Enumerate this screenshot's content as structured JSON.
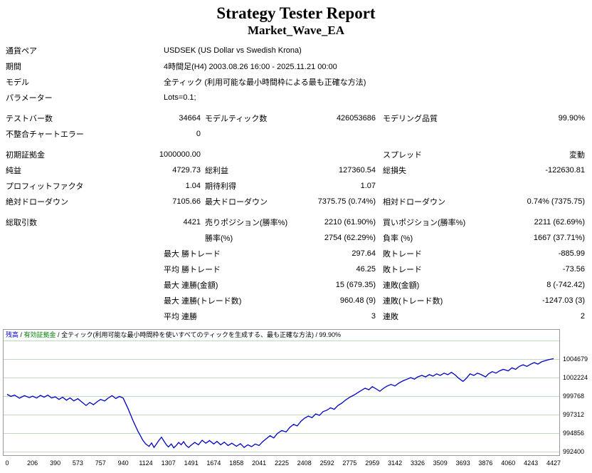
{
  "title": "Strategy Tester Report",
  "subtitle": "Market_Wave_EA",
  "report": {
    "rows": [
      {
        "k": "symbol",
        "cells": [
          {
            "c": 1,
            "t": "通貨ペア"
          },
          {
            "c": 2,
            "s": 5,
            "a": "l",
            "i": 1,
            "t": "USDSEK (US Dollar vs Swedish Krona)"
          }
        ]
      },
      {
        "k": "period",
        "cells": [
          {
            "c": 1,
            "t": "期間"
          },
          {
            "c": 2,
            "s": 5,
            "a": "l",
            "i": 1,
            "t": "4時間足(H4) 2003.08.26 16:00 - 2025.11.21 00:00"
          }
        ]
      },
      {
        "k": "model",
        "cells": [
          {
            "c": 1,
            "t": "モデル"
          },
          {
            "c": 2,
            "s": 5,
            "a": "l",
            "i": 1,
            "t": "全ティック (利用可能な最小時間枠による最も正確な方法)"
          }
        ]
      },
      {
        "k": "parameters",
        "cells": [
          {
            "c": 1,
            "t": "パラメーター"
          },
          {
            "c": 2,
            "s": 5,
            "a": "l",
            "i": 1,
            "t": "Lots=0.1;"
          }
        ]
      },
      {
        "k": "bars",
        "gap": true,
        "cells": [
          {
            "c": 1,
            "t": "テストバー数"
          },
          {
            "c": 2,
            "t": "34664"
          },
          {
            "c": 3,
            "t": "モデルティック数"
          },
          {
            "c": 4,
            "t": "426053686"
          },
          {
            "c": 5,
            "t": "モデリング品質"
          },
          {
            "c": 6,
            "t": "99.90%"
          }
        ]
      },
      {
        "k": "chart-errors",
        "cells": [
          {
            "c": 1,
            "t": "不整合チャートエラー"
          },
          {
            "c": 2,
            "t": "0"
          }
        ]
      },
      {
        "k": "initial-deposit",
        "gap": true,
        "cells": [
          {
            "c": 1,
            "t": "初期証拠金"
          },
          {
            "c": 2,
            "t": "1000000.00"
          },
          {
            "c": 5,
            "t": "スプレッド"
          },
          {
            "c": 6,
            "t": "変動"
          }
        ]
      },
      {
        "k": "net-profit",
        "cells": [
          {
            "c": 1,
            "t": "純益"
          },
          {
            "c": 2,
            "t": "4729.73"
          },
          {
            "c": 3,
            "t": "総利益"
          },
          {
            "c": 4,
            "t": "127360.54"
          },
          {
            "c": 5,
            "t": "総損失"
          },
          {
            "c": 6,
            "t": "-122630.81"
          }
        ]
      },
      {
        "k": "profit-factor",
        "cells": [
          {
            "c": 1,
            "t": "プロフィットファクタ"
          },
          {
            "c": 2,
            "t": "1.04"
          },
          {
            "c": 3,
            "t": "期待利得"
          },
          {
            "c": 4,
            "t": "1.07"
          }
        ]
      },
      {
        "k": "drawdown",
        "cells": [
          {
            "c": 1,
            "t": "絶対ドローダウン"
          },
          {
            "c": 2,
            "t": "7105.66"
          },
          {
            "c": 3,
            "t": "最大ドローダウン"
          },
          {
            "c": 4,
            "t": "7375.75 (0.74%)"
          },
          {
            "c": 5,
            "t": "相対ドローダウン"
          },
          {
            "c": 6,
            "t": "0.74% (7375.75)"
          }
        ]
      },
      {
        "k": "total-trades",
        "gap": true,
        "cells": [
          {
            "c": 1,
            "t": "総取引数"
          },
          {
            "c": 2,
            "t": "4421"
          },
          {
            "c": 3,
            "t": "売りポジション(勝率%)"
          },
          {
            "c": 4,
            "t": "2210 (61.90%)"
          },
          {
            "c": 5,
            "t": "買いポジション(勝率%)"
          },
          {
            "c": 6,
            "t": "2211 (62.69%)"
          }
        ]
      },
      {
        "k": "win-rate",
        "cells": [
          {
            "c": 3,
            "t": "勝率(%)"
          },
          {
            "c": 4,
            "t": "2754 (62.29%)"
          },
          {
            "c": 5,
            "t": "負率 (%)"
          },
          {
            "c": 6,
            "t": "1667 (37.71%)"
          }
        ]
      },
      {
        "k": "largest-trade",
        "cells": [
          {
            "c": 2,
            "s": 2,
            "a": "l",
            "i": 1,
            "t": "最大 勝トレード"
          },
          {
            "c": 4,
            "t": "297.64"
          },
          {
            "c": 5,
            "t": "敗トレード"
          },
          {
            "c": 6,
            "t": "-885.99"
          }
        ]
      },
      {
        "k": "average-trade",
        "cells": [
          {
            "c": 2,
            "s": 2,
            "a": "l",
            "i": 1,
            "t": "平均 勝トレード"
          },
          {
            "c": 4,
            "t": "46.25"
          },
          {
            "c": 5,
            "t": "敗トレード"
          },
          {
            "c": 6,
            "t": "-73.56"
          }
        ]
      },
      {
        "k": "max-consecutive-amount",
        "cells": [
          {
            "c": 2,
            "s": 2,
            "a": "l",
            "i": 1,
            "t": "最大 連勝(金額)"
          },
          {
            "c": 4,
            "t": "15 (679.35)"
          },
          {
            "c": 5,
            "t": "連敗(金額)"
          },
          {
            "c": 6,
            "t": "8 (-742.42)"
          }
        ]
      },
      {
        "k": "max-consecutive-count",
        "cells": [
          {
            "c": 2,
            "s": 2,
            "a": "l",
            "i": 1,
            "t": "最大 連勝(トレード数)"
          },
          {
            "c": 4,
            "t": "960.48 (9)"
          },
          {
            "c": 5,
            "t": "連敗(トレード数)"
          },
          {
            "c": 6,
            "t": "-1247.03 (3)"
          }
        ]
      },
      {
        "k": "avg-consecutive",
        "cells": [
          {
            "c": 2,
            "s": 2,
            "a": "l",
            "i": 1,
            "t": "平均 連勝"
          },
          {
            "c": 4,
            "t": "3"
          },
          {
            "c": 5,
            "t": "連敗"
          },
          {
            "c": 6,
            "t": "2"
          }
        ]
      }
    ]
  },
  "chart": {
    "legend": {
      "balance": "残高",
      "equity": "有効証拠金",
      "model": "全ティック(利用可能な最小時間枠を使いすべてのティックを生成する、最も正確な方法)",
      "quality": "99.90%",
      "sep": " / "
    },
    "colors": {
      "balance_line": "#0000c8",
      "balance_label": "#0000d0",
      "equity_label": "#008000",
      "grid": "#c0dcc0",
      "border": "#999999"
    },
    "chart_data": {
      "type": "line",
      "legend_position": "top-left",
      "grid": "horizontal",
      "x_range": [
        0,
        4427
      ],
      "y_range": [
        992400,
        1004679
      ],
      "y_ticks": [
        1004679,
        1002224,
        999768,
        997312,
        994856,
        992400
      ],
      "x_ticks": [
        0,
        206,
        390,
        573,
        757,
        940,
        1124,
        1307,
        1491,
        1674,
        1858,
        2041,
        2225,
        2408,
        2592,
        2775,
        2959,
        3142,
        3326,
        3509,
        3693,
        3876,
        4060,
        4243,
        4427
      ],
      "series": [
        {
          "name": "残高",
          "points": [
            [
              0,
              1000000
            ],
            [
              30,
              999720
            ],
            [
              60,
              999900
            ],
            [
              100,
              999480
            ],
            [
              140,
              999820
            ],
            [
              180,
              999560
            ],
            [
              206,
              999760
            ],
            [
              240,
              999500
            ],
            [
              270,
              999860
            ],
            [
              300,
              999620
            ],
            [
              330,
              999900
            ],
            [
              360,
              999520
            ],
            [
              390,
              999660
            ],
            [
              420,
              999320
            ],
            [
              450,
              999620
            ],
            [
              480,
              999220
            ],
            [
              510,
              999520
            ],
            [
              540,
              999130
            ],
            [
              573,
              999420
            ],
            [
              610,
              998920
            ],
            [
              640,
              998520
            ],
            [
              670,
              998920
            ],
            [
              700,
              998620
            ],
            [
              730,
              999020
            ],
            [
              757,
              999320
            ],
            [
              790,
              999120
            ],
            [
              820,
              999520
            ],
            [
              850,
              999820
            ],
            [
              880,
              999440
            ],
            [
              910,
              999720
            ],
            [
              940,
              999500
            ],
            [
              960,
              998800
            ],
            [
              980,
              998100
            ],
            [
              1000,
              997300
            ],
            [
              1020,
              996500
            ],
            [
              1040,
              995800
            ],
            [
              1060,
              995100
            ],
            [
              1080,
              994500
            ],
            [
              1100,
              993900
            ],
            [
              1124,
              993400
            ],
            [
              1150,
              993100
            ],
            [
              1170,
              993550
            ],
            [
              1190,
              992960
            ],
            [
              1210,
              993420
            ],
            [
              1230,
              993900
            ],
            [
              1250,
              994320
            ],
            [
              1270,
              993820
            ],
            [
              1290,
              993320
            ],
            [
              1307,
              993020
            ],
            [
              1330,
              993420
            ],
            [
              1350,
              992900
            ],
            [
              1370,
              993220
            ],
            [
              1390,
              993620
            ],
            [
              1410,
              993320
            ],
            [
              1430,
              993720
            ],
            [
              1450,
              993220
            ],
            [
              1470,
              992950
            ],
            [
              1491,
              993260
            ],
            [
              1520,
              993620
            ],
            [
              1550,
              993310
            ],
            [
              1580,
              993910
            ],
            [
              1610,
              993510
            ],
            [
              1640,
              993860
            ],
            [
              1674,
              993410
            ],
            [
              1700,
              993760
            ],
            [
              1730,
              993310
            ],
            [
              1760,
              993660
            ],
            [
              1790,
              993210
            ],
            [
              1820,
              993510
            ],
            [
              1858,
              993110
            ],
            [
              1890,
              993460
            ],
            [
              1920,
              992950
            ],
            [
              1950,
              993310
            ],
            [
              1980,
              993060
            ],
            [
              2010,
              993410
            ],
            [
              2041,
              993210
            ],
            [
              2070,
              993710
            ],
            [
              2100,
              994110
            ],
            [
              2130,
              994510
            ],
            [
              2160,
              994210
            ],
            [
              2190,
              994810
            ],
            [
              2225,
              995210
            ],
            [
              2260,
              995010
            ],
            [
              2290,
              995610
            ],
            [
              2320,
              996010
            ],
            [
              2350,
              995810
            ],
            [
              2380,
              996410
            ],
            [
              2408,
              996810
            ],
            [
              2440,
              997110
            ],
            [
              2470,
              996910
            ],
            [
              2500,
              997410
            ],
            [
              2530,
              997210
            ],
            [
              2560,
              997710
            ],
            [
              2592,
              997910
            ],
            [
              2620,
              998210
            ],
            [
              2650,
              998010
            ],
            [
              2680,
              998510
            ],
            [
              2710,
              998810
            ],
            [
              2740,
              999210
            ],
            [
              2775,
              999610
            ],
            [
              2810,
              999910
            ],
            [
              2840,
              1000210
            ],
            [
              2870,
              1000510
            ],
            [
              2900,
              1000810
            ],
            [
              2930,
              1000610
            ],
            [
              2959,
              1001010
            ],
            [
              2990,
              1000710
            ],
            [
              3020,
              1000410
            ],
            [
              3050,
              1000810
            ],
            [
              3080,
              1001110
            ],
            [
              3110,
              1001310
            ],
            [
              3142,
              1001110
            ],
            [
              3175,
              1001510
            ],
            [
              3210,
              1001810
            ],
            [
              3240,
              1002010
            ],
            [
              3270,
              1002210
            ],
            [
              3300,
              1002010
            ],
            [
              3326,
              1002310
            ],
            [
              3360,
              1002510
            ],
            [
              3390,
              1002310
            ],
            [
              3420,
              1002610
            ],
            [
              3450,
              1002410
            ],
            [
              3480,
              1002710
            ],
            [
              3509,
              1002510
            ],
            [
              3540,
              1002810
            ],
            [
              3570,
              1002610
            ],
            [
              3600,
              1002910
            ],
            [
              3630,
              1002560
            ],
            [
              3660,
              1002110
            ],
            [
              3693,
              1001710
            ],
            [
              3720,
              1002110
            ],
            [
              3750,
              1002710
            ],
            [
              3780,
              1002510
            ],
            [
              3810,
              1002810
            ],
            [
              3840,
              1002610
            ],
            [
              3876,
              1002310
            ],
            [
              3900,
              1002710
            ],
            [
              3930,
              1003010
            ],
            [
              3960,
              1002810
            ],
            [
              3990,
              1003110
            ],
            [
              4020,
              1003310
            ],
            [
              4060,
              1003110
            ],
            [
              4090,
              1003510
            ],
            [
              4120,
              1003310
            ],
            [
              4150,
              1003710
            ],
            [
              4180,
              1003910
            ],
            [
              4210,
              1003710
            ],
            [
              4243,
              1004010
            ],
            [
              4270,
              1004210
            ],
            [
              4300,
              1004010
            ],
            [
              4330,
              1004310
            ],
            [
              4360,
              1004460
            ],
            [
              4390,
              1004610
            ],
            [
              4427,
              1004730
            ]
          ]
        }
      ]
    }
  }
}
